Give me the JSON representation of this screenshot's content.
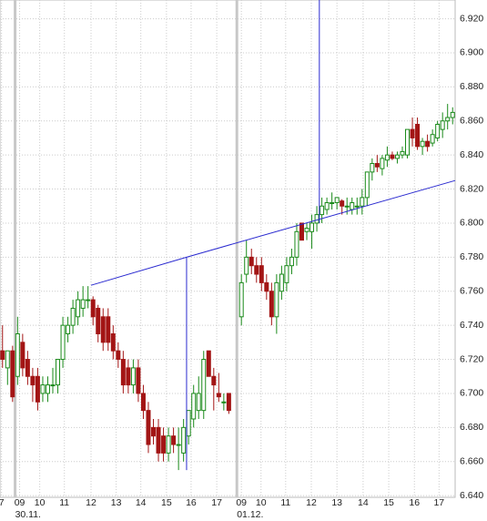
{
  "chart_data": {
    "type": "candlestick",
    "x": [
      0,
      1,
      2,
      3,
      4,
      5,
      6,
      7,
      8,
      9,
      10,
      11,
      12,
      13,
      14,
      15,
      16,
      17,
      18,
      19,
      20,
      21,
      22,
      23,
      24,
      25,
      26,
      27,
      28,
      29,
      30,
      31,
      32,
      33,
      34,
      35,
      36,
      37,
      38,
      39,
      40,
      41,
      42,
      43,
      44,
      45,
      47.5,
      48.5,
      49.5,
      50.5,
      51.5,
      52.5,
      53.5,
      54.5,
      55.5,
      56.5,
      57.5,
      58.5,
      59.5,
      60.5,
      61.5,
      62.5,
      63.5,
      64.5,
      65.5,
      66.5,
      67.5,
      68.5,
      69.5,
      70.5,
      71.5,
      72.5,
      73.5,
      74.5,
      75.5,
      76.5,
      77.5,
      78.5,
      79.5,
      80.5,
      81.5,
      82.5,
      83.5,
      84.5,
      85.5,
      86.5,
      87.5,
      88.5,
      89.5
    ],
    "open": [
      6.725,
      6.715,
      6.725,
      6.71,
      6.73,
      6.72,
      6.71,
      6.71,
      6.7,
      6.7,
      6.705,
      6.705,
      6.72,
      6.735,
      6.74,
      6.745,
      6.75,
      6.755,
      6.755,
      6.75,
      6.745,
      6.745,
      6.735,
      6.725,
      6.72,
      6.715,
      6.705,
      6.715,
      6.7,
      6.69,
      6.68,
      6.68,
      6.675,
      6.665,
      6.675,
      6.67,
      6.665,
      6.675,
      6.685,
      6.69,
      6.69,
      6.725,
      6.71,
      6.7,
      6.695,
      6.7,
      6.745,
      6.77,
      6.78,
      6.775,
      6.775,
      6.765,
      6.76,
      6.745,
      6.76,
      6.765,
      6.775,
      6.78,
      6.8,
      6.795,
      6.795,
      6.8,
      6.805,
      6.808,
      6.812,
      6.812,
      6.813,
      6.81,
      6.808,
      6.81,
      6.81,
      6.815,
      6.83,
      6.835,
      6.832,
      6.837,
      6.84,
      6.838,
      6.84,
      6.84,
      6.855,
      6.858,
      6.845,
      6.848,
      6.847,
      6.85,
      6.855,
      6.86,
      6.862
    ],
    "high": [
      6.74,
      6.725,
      6.728,
      6.745,
      6.735,
      6.725,
      6.715,
      6.715,
      6.71,
      6.71,
      6.715,
      6.72,
      6.745,
      6.745,
      6.755,
      6.76,
      6.763,
      6.763,
      6.757,
      6.752,
      6.75,
      6.75,
      6.74,
      6.73,
      6.725,
      6.72,
      6.72,
      6.72,
      6.705,
      6.695,
      6.685,
      6.685,
      6.68,
      6.68,
      6.68,
      6.68,
      6.685,
      6.69,
      6.705,
      6.71,
      6.725,
      6.725,
      6.715,
      6.712,
      6.7,
      6.7,
      6.77,
      6.79,
      6.785,
      6.78,
      6.78,
      6.77,
      6.765,
      6.77,
      6.775,
      6.78,
      6.785,
      6.8,
      6.8,
      6.8,
      6.805,
      6.81,
      6.815,
      6.815,
      6.818,
      6.815,
      6.814,
      6.815,
      6.815,
      6.815,
      6.82,
      6.83,
      6.838,
      6.84,
      6.84,
      6.845,
      6.842,
      6.842,
      6.845,
      6.855,
      6.862,
      6.862,
      6.85,
      6.852,
      6.855,
      6.86,
      6.865,
      6.87,
      6.868
    ],
    "low": [
      6.715,
      6.705,
      6.695,
      6.705,
      6.71,
      6.705,
      6.695,
      6.69,
      6.695,
      6.695,
      6.7,
      6.7,
      6.715,
      6.73,
      6.735,
      6.74,
      6.745,
      6.75,
      6.74,
      6.73,
      6.725,
      6.725,
      6.72,
      6.715,
      6.7,
      6.7,
      6.7,
      6.695,
      6.685,
      6.665,
      6.67,
      6.66,
      6.66,
      6.66,
      6.665,
      6.655,
      6.66,
      6.67,
      6.68,
      6.685,
      6.685,
      6.71,
      6.69,
      6.695,
      6.69,
      6.688,
      6.74,
      6.765,
      6.77,
      6.765,
      6.76,
      6.755,
      6.74,
      6.735,
      6.755,
      6.76,
      6.77,
      6.775,
      6.79,
      6.79,
      6.785,
      6.795,
      6.8,
      6.805,
      6.808,
      6.808,
      6.805,
      6.805,
      6.805,
      6.805,
      6.805,
      6.81,
      6.825,
      6.83,
      6.828,
      6.833,
      6.837,
      6.835,
      6.838,
      6.838,
      6.845,
      6.843,
      6.84,
      6.842,
      6.845,
      6.848,
      6.85,
      6.855,
      6.858
    ],
    "close": [
      6.72,
      6.725,
      6.698,
      6.735,
      6.715,
      6.71,
      6.705,
      6.695,
      6.705,
      6.705,
      6.705,
      6.72,
      6.74,
      6.74,
      6.75,
      6.755,
      6.755,
      6.755,
      6.745,
      6.735,
      6.73,
      6.73,
      6.725,
      6.72,
      6.705,
      6.705,
      6.715,
      6.7,
      6.69,
      6.67,
      6.675,
      6.665,
      6.665,
      6.675,
      6.67,
      6.67,
      6.68,
      6.69,
      6.7,
      6.7,
      6.72,
      6.71,
      6.705,
      6.698,
      6.695,
      6.69,
      6.765,
      6.78,
      6.775,
      6.77,
      6.765,
      6.76,
      6.745,
      6.765,
      6.77,
      6.775,
      6.78,
      6.795,
      6.79,
      6.797,
      6.8,
      6.805,
      6.81,
      6.812,
      6.812,
      6.815,
      6.81,
      6.81,
      6.812,
      6.81,
      6.815,
      6.83,
      6.835,
      6.833,
      6.838,
      6.84,
      6.838,
      6.84,
      6.842,
      6.855,
      6.85,
      6.845,
      6.848,
      6.845,
      6.852,
      6.858,
      6.86,
      6.862,
      6.865
    ],
    "up_color": "#1a8a1a",
    "down_color": "#a31515",
    "line_color": "#2a2ad0",
    "trend_lines": [
      {
        "x": [
          17.6,
          36.6,
          90
        ],
        "y": [
          6.7635,
          6.78,
          6.825
        ]
      }
    ],
    "vertical_lines": [
      {
        "x": 36.6,
        "y": [
          6.78,
          6.655
        ]
      },
      {
        "x": 63,
        "y": [
          6.931,
          6.8
        ]
      }
    ],
    "xlim": [
      -0.5,
      90
    ],
    "ylim": [
      6.639,
      6.931
    ],
    "xticks": [
      {
        "value": -0.2,
        "label": "7"
      },
      {
        "value": 3.4,
        "label": "09"
      },
      {
        "value": 7.4,
        "label": "10"
      },
      {
        "value": 12.3,
        "label": "11"
      },
      {
        "value": 17.6,
        "label": "12"
      },
      {
        "value": 22.6,
        "label": "13"
      },
      {
        "value": 27.5,
        "label": "14"
      },
      {
        "value": 32.6,
        "label": "15"
      },
      {
        "value": 37.5,
        "label": "16"
      },
      {
        "value": 42.6,
        "label": "17"
      },
      {
        "value": 47.5,
        "label": "09"
      },
      {
        "value": 51.4,
        "label": "10"
      },
      {
        "value": 56.3,
        "label": "11"
      },
      {
        "value": 61.4,
        "label": "12"
      },
      {
        "value": 66.5,
        "label": "13"
      },
      {
        "value": 71.7,
        "label": "14"
      },
      {
        "value": 76.8,
        "label": "15"
      },
      {
        "value": 81.9,
        "label": "16"
      },
      {
        "value": 86.8,
        "label": "17"
      }
    ],
    "day_labels": [
      {
        "value": 2.5,
        "label": "30.11."
      },
      {
        "value": 46.6,
        "label": "01.12."
      }
    ],
    "yticks": [
      {
        "value": 6.64,
        "label": "6.640"
      },
      {
        "value": 6.66,
        "label": "6.660"
      },
      {
        "value": 6.68,
        "label": "6.680"
      },
      {
        "value": 6.7,
        "label": "6.700"
      },
      {
        "value": 6.72,
        "label": "6.720"
      },
      {
        "value": 6.74,
        "label": "6.740"
      },
      {
        "value": 6.76,
        "label": "6.760"
      },
      {
        "value": 6.78,
        "label": "6.780"
      },
      {
        "value": 6.8,
        "label": "6.800"
      },
      {
        "value": 6.82,
        "label": "6.820"
      },
      {
        "value": 6.84,
        "label": "6.840"
      },
      {
        "value": 6.86,
        "label": "6.860"
      },
      {
        "value": 6.88,
        "label": "6.880"
      },
      {
        "value": 6.9,
        "label": "6.900"
      },
      {
        "value": 6.92,
        "label": "6.920"
      }
    ],
    "grid": true
  }
}
